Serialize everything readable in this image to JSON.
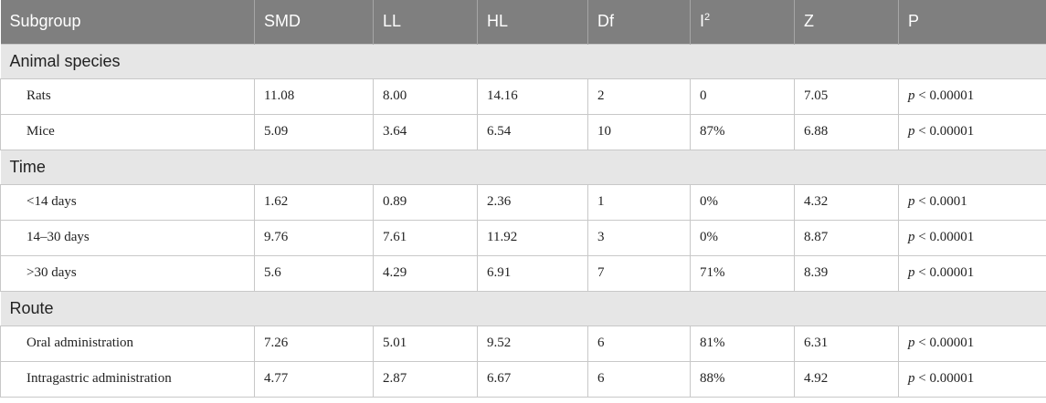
{
  "headers": [
    "Subgroup",
    "SMD",
    "LL",
    "HL",
    "Df",
    "I",
    "Z",
    "P"
  ],
  "i_sup": "2",
  "groups": [
    {
      "label": "Animal species",
      "rows": [
        {
          "subgroup": "Rats",
          "smd": "11.08",
          "ll": "8.00",
          "hl": "14.16",
          "df": "2",
          "i2": "0",
          "z": "7.05",
          "p_sym": "p",
          "p_val": " < 0.00001"
        },
        {
          "subgroup": "Mice",
          "smd": "5.09",
          "ll": "3.64",
          "hl": "6.54",
          "df": "10",
          "i2": "87%",
          "z": "6.88",
          "p_sym": "p",
          "p_val": " < 0.00001"
        }
      ]
    },
    {
      "label": "Time",
      "rows": [
        {
          "subgroup": "<14 days",
          "smd": "1.62",
          "ll": "0.89",
          "hl": "2.36",
          "df": "1",
          "i2": "0%",
          "z": "4.32",
          "p_sym": "p",
          "p_val": " < 0.0001"
        },
        {
          "subgroup": "14–30 days",
          "smd": "9.76",
          "ll": "7.61",
          "hl": "11.92",
          "df": "3",
          "i2": "0%",
          "z": "8.87",
          "p_sym": "p",
          "p_val": " < 0.00001"
        },
        {
          "subgroup": ">30 days",
          "smd": "5.6",
          "ll": "4.29",
          "hl": "6.91",
          "df": "7",
          "i2": "71%",
          "z": "8.39",
          "p_sym": "p",
          "p_val": " < 0.00001"
        }
      ]
    },
    {
      "label": "Route",
      "rows": [
        {
          "subgroup": "Oral administration",
          "smd": "7.26",
          "ll": "5.01",
          "hl": "9.52",
          "df": "6",
          "i2": "81%",
          "z": "6.31",
          "p_sym": "p",
          "p_val": " < 0.00001"
        },
        {
          "subgroup": "Intragastric administration",
          "smd": "4.77",
          "ll": "2.87",
          "hl": "6.67",
          "df": "6",
          "i2": "88%",
          "z": "4.92",
          "p_sym": "p",
          "p_val": " < 0.00001"
        }
      ]
    }
  ]
}
